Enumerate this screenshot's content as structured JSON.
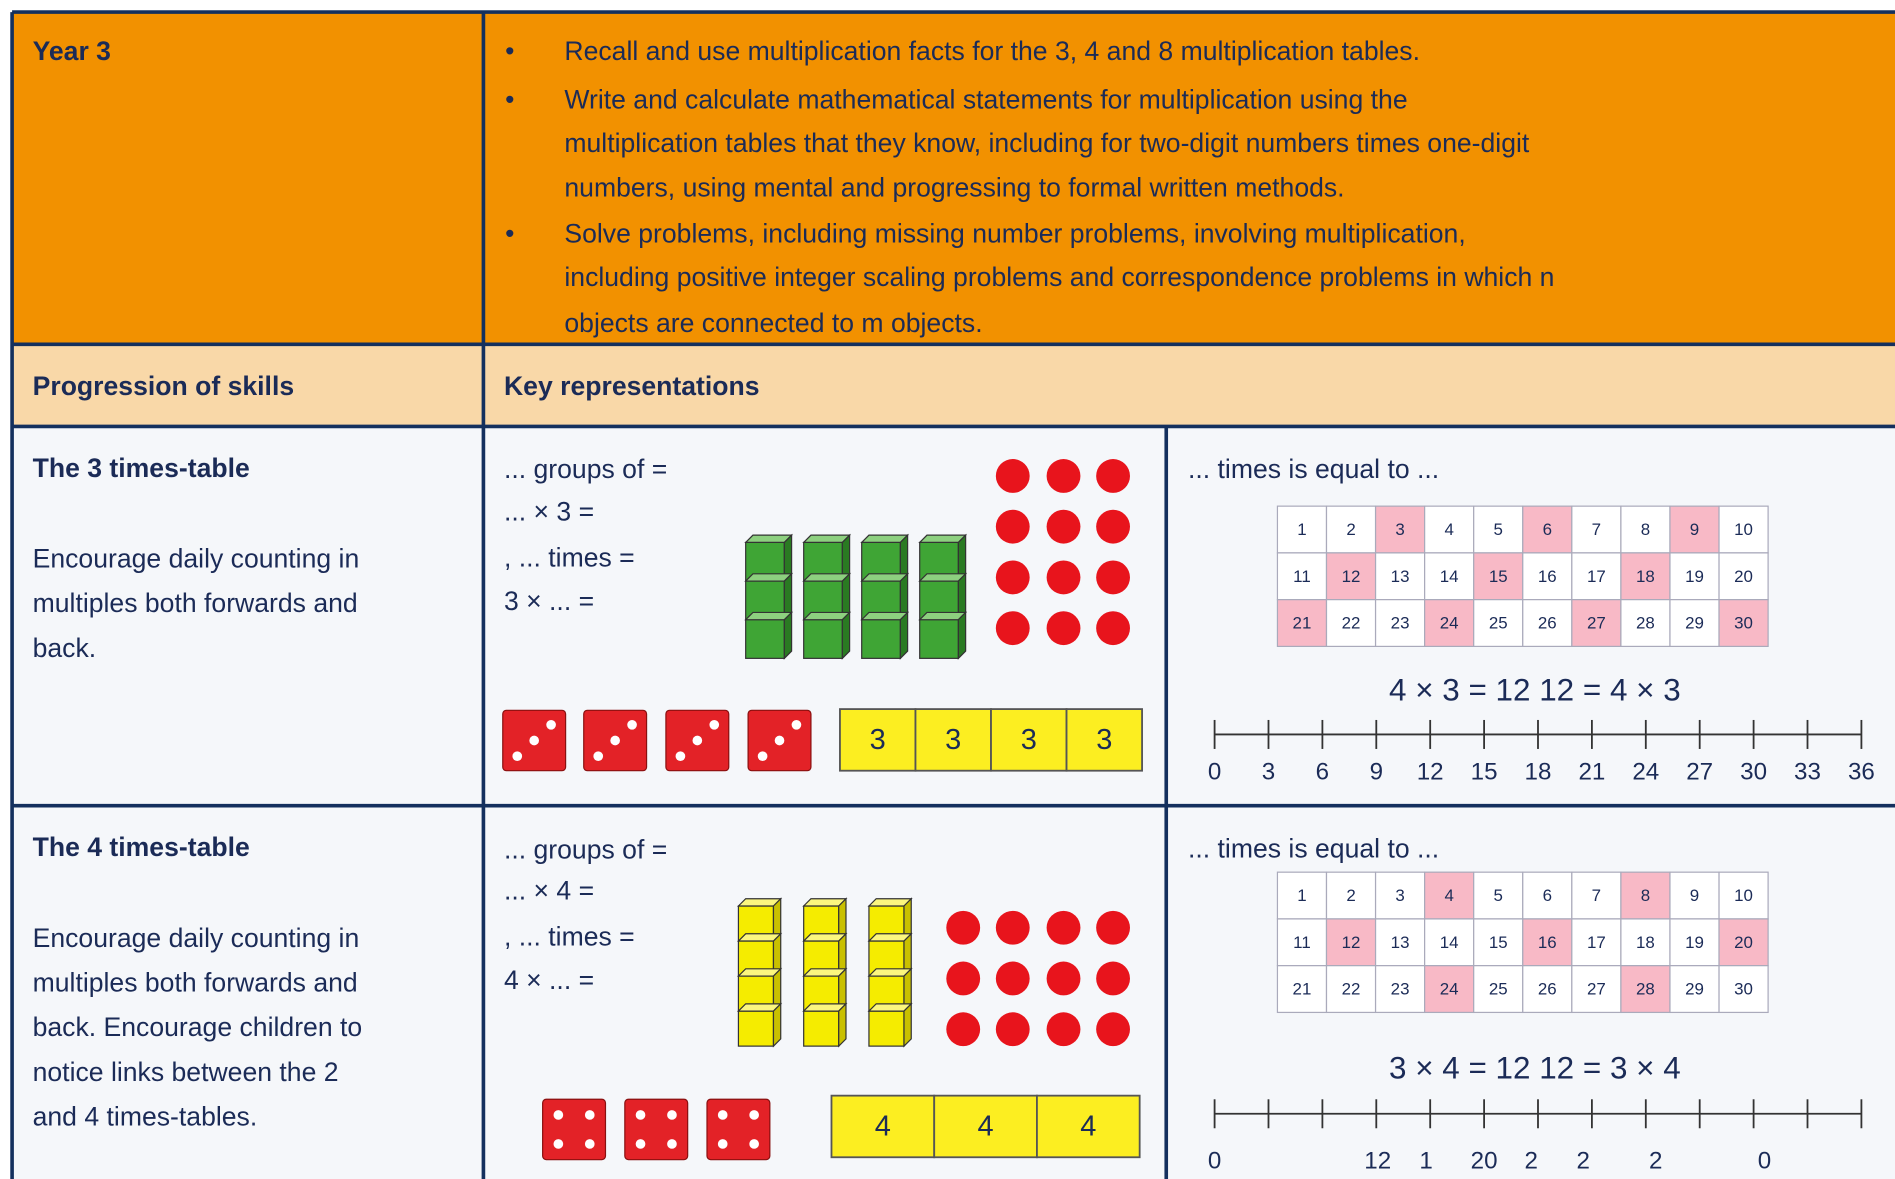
{
  "header": {
    "year": "Year 3",
    "objectives": [
      [
        "Recall and use multiplication facts for the 3, 4 and 8 multiplication tables."
      ],
      [
        "Write and calculate mathematical statements for multiplication using the",
        "multiplication tables that they know, including for two-digit numbers times one-digit",
        "numbers, using mental and progressing to formal written methods."
      ],
      [
        "Solve problems, including missing number problems, involving multiplication,",
        "including positive integer scaling problems and correspondence problems in which n",
        "objects are connected to m objects."
      ]
    ]
  },
  "subheader": {
    "left": "Progression of skills",
    "right": "Key representations"
  },
  "sections": [
    {
      "title": "The 3 times-table",
      "description": [
        "Encourage daily counting in",
        "multiples both forwards and",
        "back."
      ],
      "prompts": [
        "... groups of   =",
        "... × 3 =",
        ", ... times   =",
        "3 × ... ="
      ],
      "bar_cells": [
        3,
        3,
        3,
        3
      ],
      "sentence": "... times   is equal to ...",
      "grid": [
        1,
        2,
        3,
        4,
        5,
        6,
        7,
        8,
        9,
        10,
        11,
        12,
        13,
        14,
        15,
        16,
        17,
        18,
        19,
        20,
        21,
        22,
        23,
        24,
        25,
        26,
        27,
        28,
        29,
        30
      ],
      "highlighted": [
        3,
        6,
        9,
        12,
        15,
        18,
        21,
        24,
        27,
        30
      ],
      "equation": "4 × 3 = 12     12 = 4 × 3",
      "number_line": [
        0,
        3,
        6,
        9,
        12,
        15,
        18,
        21,
        24,
        27,
        30,
        33,
        36
      ]
    },
    {
      "title": "The 4 times-table",
      "description": [
        "Encourage daily counting in",
        "multiples both forwards and",
        "back. Encourage children to",
        "notice links between the 2",
        "and 4 times-tables."
      ],
      "prompts": [
        "... groups of   =",
        "... × 4 =",
        ", ... times   =",
        "4 × ... ="
      ],
      "bar_cells": [
        4,
        4,
        4
      ],
      "sentence": "... times   is equal to ...",
      "grid": [
        1,
        2,
        3,
        4,
        5,
        6,
        7,
        8,
        9,
        10,
        11,
        12,
        13,
        14,
        15,
        16,
        17,
        18,
        19,
        20,
        21,
        22,
        23,
        24,
        25,
        26,
        27,
        28,
        29,
        30
      ],
      "highlighted": [
        4,
        8,
        12,
        16,
        20,
        24,
        28
      ],
      "equation": "3 × 4 = 12     12 = 3 × 4",
      "number_line": [
        0,
        12,
        1,
        20,
        2,
        2,
        2,
        0
      ]
    }
  ]
}
